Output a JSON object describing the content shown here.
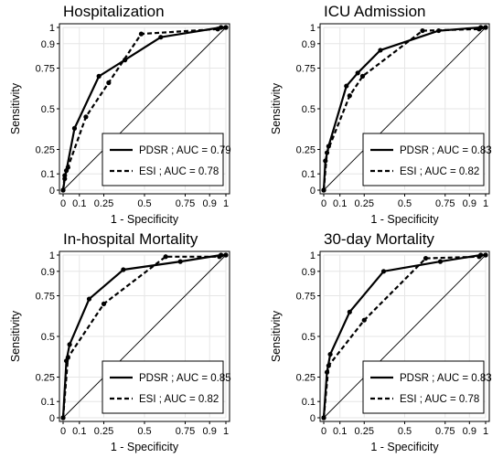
{
  "chart_data": [
    {
      "type": "line",
      "title": "Hospitalization",
      "xlabel": "1 - Specificity",
      "ylabel": "Sensitivity",
      "xlim": [
        0,
        1
      ],
      "ylim": [
        0,
        1
      ],
      "ticks": [
        0,
        0.1,
        0.25,
        0.5,
        0.75,
        0.9,
        1
      ],
      "tick_labels": [
        "0",
        "0.1",
        "0.25",
        "0.5",
        "0.75",
        "0.9",
        "1"
      ],
      "grid": true,
      "diagonal_reference": true,
      "legend_position": "bottom-right",
      "series": [
        {
          "name": "PDSR ; AUC = 0.79",
          "line_style": "solid",
          "x": [
            0,
            0.01,
            0.02,
            0.07,
            0.22,
            0.38,
            0.6,
            0.97,
            1
          ],
          "y": [
            0,
            0.07,
            0.12,
            0.38,
            0.7,
            0.8,
            0.94,
            1.0,
            1
          ]
        },
        {
          "name": "ESI ; AUC = 0.78",
          "line_style": "dashed",
          "x": [
            0,
            0.01,
            0.03,
            0.14,
            0.28,
            0.48,
            0.95,
            1
          ],
          "y": [
            0,
            0.09,
            0.14,
            0.45,
            0.66,
            0.96,
            0.99,
            1
          ]
        }
      ]
    },
    {
      "type": "line",
      "title": "ICU Admission",
      "xlabel": "1 - Specificity",
      "ylabel": "Sensitivity",
      "xlim": [
        0,
        1
      ],
      "ylim": [
        0,
        1
      ],
      "ticks": [
        0,
        0.1,
        0.25,
        0.5,
        0.75,
        0.9,
        1
      ],
      "tick_labels": [
        "0",
        "0.1",
        "0.25",
        "0.5",
        "0.75",
        "0.9",
        "1"
      ],
      "grid": true,
      "diagonal_reference": true,
      "legend_position": "bottom-right",
      "series": [
        {
          "name": "PDSR ; AUC = 0.83",
          "line_style": "solid",
          "x": [
            0,
            0.01,
            0.03,
            0.14,
            0.21,
            0.35,
            0.71,
            0.97,
            1
          ],
          "y": [
            0,
            0.18,
            0.27,
            0.64,
            0.72,
            0.86,
            0.98,
            1.0,
            1
          ]
        },
        {
          "name": "ESI ; AUC = 0.82",
          "line_style": "dashed",
          "x": [
            0,
            0.02,
            0.16,
            0.24,
            0.61,
            0.96,
            1
          ],
          "y": [
            0,
            0.23,
            0.58,
            0.7,
            0.98,
            0.99,
            1
          ]
        }
      ]
    },
    {
      "type": "line",
      "title": "In-hospital Mortality",
      "xlabel": "1 - Specificity",
      "ylabel": "Sensitivity",
      "xlim": [
        0,
        1
      ],
      "ylim": [
        0,
        1
      ],
      "ticks": [
        0,
        0.1,
        0.25,
        0.5,
        0.75,
        0.9,
        1
      ],
      "tick_labels": [
        "0",
        "0.1",
        "0.25",
        "0.5",
        "0.75",
        "0.9",
        "1"
      ],
      "grid": true,
      "diagonal_reference": true,
      "legend_position": "bottom-right",
      "series": [
        {
          "name": "PDSR ; AUC = 0.85",
          "line_style": "solid",
          "x": [
            0,
            0.02,
            0.04,
            0.16,
            0.37,
            0.72,
            0.97,
            1
          ],
          "y": [
            0,
            0.35,
            0.45,
            0.73,
            0.91,
            0.96,
            1.0,
            1
          ]
        },
        {
          "name": "ESI ; AUC = 0.82",
          "line_style": "dashed",
          "x": [
            0,
            0.03,
            0.25,
            0.63,
            0.96,
            1
          ],
          "y": [
            0,
            0.37,
            0.7,
            0.99,
            0.99,
            1
          ]
        }
      ]
    },
    {
      "type": "line",
      "title": "30-day Mortality",
      "xlabel": "1 - Specificity",
      "ylabel": "Sensitivity",
      "xlim": [
        0,
        1
      ],
      "ylim": [
        0,
        1
      ],
      "ticks": [
        0,
        0.1,
        0.25,
        0.5,
        0.75,
        0.9,
        1
      ],
      "tick_labels": [
        "0",
        "0.1",
        "0.25",
        "0.5",
        "0.75",
        "0.9",
        "1"
      ],
      "grid": true,
      "diagonal_reference": true,
      "legend_position": "bottom-right",
      "series": [
        {
          "name": "PDSR ; AUC = 0.83",
          "line_style": "solid",
          "x": [
            0,
            0.02,
            0.04,
            0.16,
            0.37,
            0.72,
            0.97,
            1
          ],
          "y": [
            0,
            0.28,
            0.39,
            0.65,
            0.9,
            0.96,
            1.0,
            1
          ]
        },
        {
          "name": "ESI ; AUC = 0.78",
          "line_style": "dashed",
          "x": [
            0,
            0.03,
            0.25,
            0.63,
            0.96,
            1
          ],
          "y": [
            0,
            0.32,
            0.6,
            0.98,
            0.99,
            1
          ]
        }
      ]
    }
  ]
}
